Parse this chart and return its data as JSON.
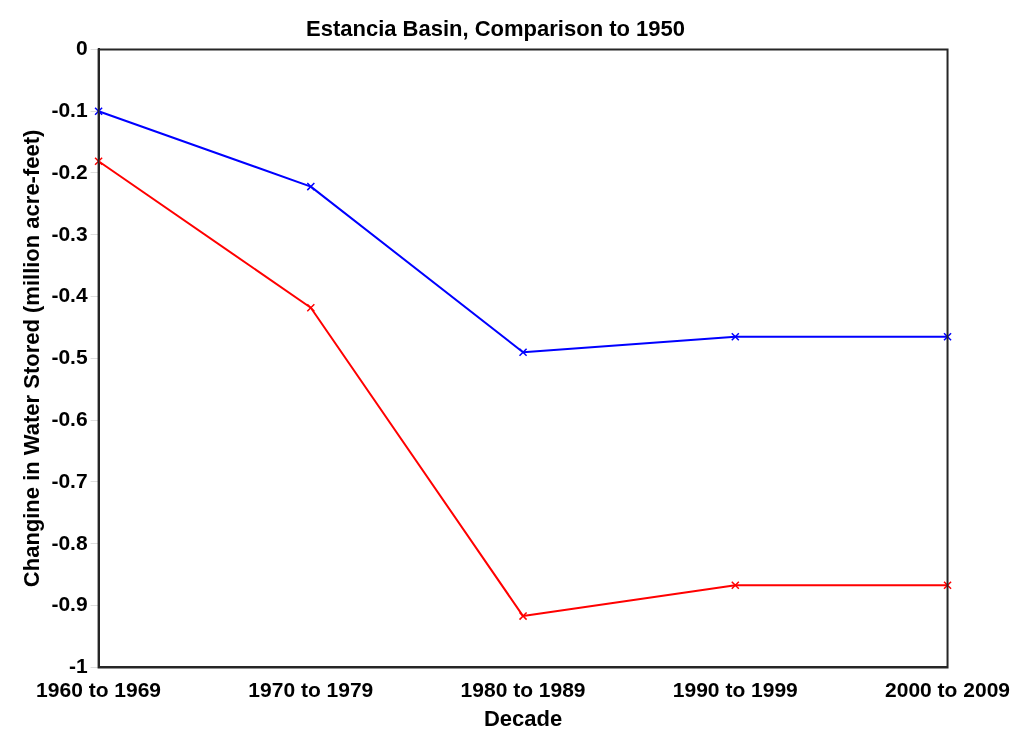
{
  "chart_data": {
    "type": "line",
    "title": "Estancia Basin, Comparison to 1950",
    "xlabel": "Decade",
    "ylabel": "Changine in Water Stored (million acre-feet)",
    "categories": [
      "1960 to 1969",
      "1970 to 1979",
      "1980 to 1989",
      "1990 to 1999",
      "2000 to 2009"
    ],
    "series": [
      {
        "color": "#0000ff",
        "values": [
          -0.1,
          -0.222,
          -0.49,
          -0.465,
          -0.465
        ]
      },
      {
        "color": "#ff0000",
        "values": [
          -0.181,
          -0.418,
          -0.917,
          -0.867,
          -0.867
        ]
      }
    ],
    "ylim": [
      -1,
      0
    ],
    "yticks": [
      -1,
      -0.9,
      -0.8,
      -0.7,
      -0.6,
      -0.5,
      -0.4,
      -0.3,
      -0.2,
      -0.1,
      0
    ],
    "grid": false,
    "legend": false,
    "marker": "cross",
    "line_style": "solid"
  }
}
